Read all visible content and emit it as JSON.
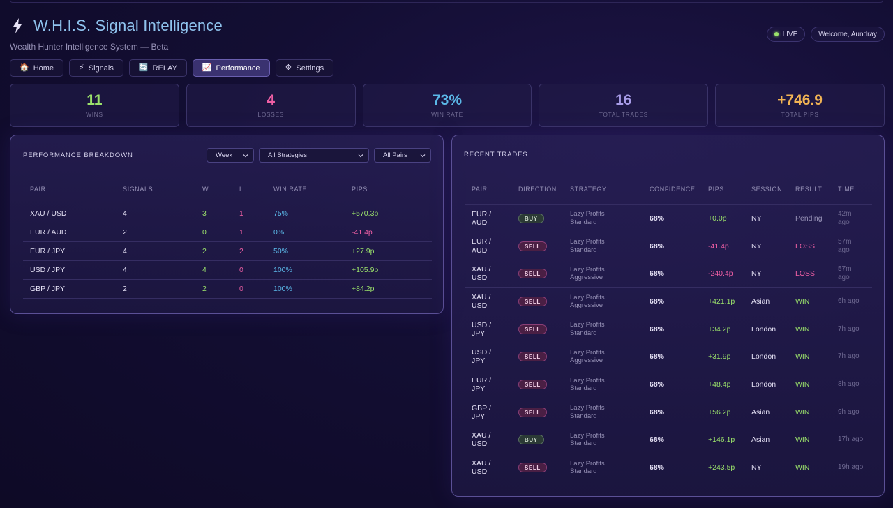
{
  "app": {
    "title": "W.H.I.S. Signal Intelligence",
    "subtitle": "Wealth Hunter Intelligence System — Beta",
    "live_label": "LIVE",
    "welcome": "Welcome, Aundray"
  },
  "nav": [
    {
      "icon": "🏠",
      "label": "Home",
      "active": false
    },
    {
      "icon": "⚡",
      "label": "Signals",
      "active": false
    },
    {
      "icon": "🔄",
      "label": "RELAY",
      "active": false
    },
    {
      "icon": "📈",
      "label": "Performance",
      "active": true
    },
    {
      "icon": "⚙",
      "label": "Settings",
      "active": false
    }
  ],
  "stats": [
    {
      "value": "11",
      "label": "WINS",
      "color": "#9be26b"
    },
    {
      "value": "4",
      "label": "LOSSES",
      "color": "#ef5fa4"
    },
    {
      "value": "73%",
      "label": "WIN RATE",
      "color": "#5bb8e8"
    },
    {
      "value": "16",
      "label": "TOTAL TRADES",
      "color": "#a89ce8"
    },
    {
      "value": "+746.9",
      "label": "TOTAL PIPS",
      "color": "#f2b454"
    }
  ],
  "breakdown": {
    "title": "PERFORMANCE BREAKDOWN",
    "filters": {
      "period": "Week",
      "strategy": "All Strategies",
      "pairs": "All Pairs"
    },
    "columns": [
      "PAIR",
      "SIGNALS",
      "W",
      "L",
      "WIN RATE",
      "PIPS"
    ],
    "rows": [
      {
        "pair": "XAU / USD",
        "signals": "4",
        "w": "3",
        "l": "1",
        "win_rate": "75%",
        "pips": "+570.3p"
      },
      {
        "pair": "EUR / AUD",
        "signals": "2",
        "w": "0",
        "l": "1",
        "win_rate": "0%",
        "pips": "-41.4p"
      },
      {
        "pair": "EUR / JPY",
        "signals": "4",
        "w": "2",
        "l": "2",
        "win_rate": "50%",
        "pips": "+27.9p"
      },
      {
        "pair": "USD / JPY",
        "signals": "4",
        "w": "4",
        "l": "0",
        "win_rate": "100%",
        "pips": "+105.9p"
      },
      {
        "pair": "GBP / JPY",
        "signals": "2",
        "w": "2",
        "l": "0",
        "win_rate": "100%",
        "pips": "+84.2p"
      }
    ]
  },
  "recent": {
    "title": "RECENT TRADES",
    "columns": [
      "PAIR",
      "DIRECTION",
      "STRATEGY",
      "CONFIDENCE",
      "PIPS",
      "SESSION",
      "RESULT",
      "TIME"
    ],
    "rows": [
      {
        "pair": [
          "EUR /",
          "AUD"
        ],
        "direction": "BUY",
        "strategy": [
          "Lazy Profits",
          "Standard"
        ],
        "confidence": "68%",
        "pips": "+0.0p",
        "session": "NY",
        "result": "Pending",
        "time": [
          "42m",
          "ago"
        ]
      },
      {
        "pair": [
          "EUR /",
          "AUD"
        ],
        "direction": "SELL",
        "strategy": [
          "Lazy Profits",
          "Standard"
        ],
        "confidence": "68%",
        "pips": "-41.4p",
        "session": "NY",
        "result": "LOSS",
        "time": [
          "57m",
          "ago"
        ]
      },
      {
        "pair": [
          "XAU /",
          "USD"
        ],
        "direction": "SELL",
        "strategy": [
          "Lazy Profits",
          "Aggressive"
        ],
        "confidence": "68%",
        "pips": "-240.4p",
        "session": "NY",
        "result": "LOSS",
        "time": [
          "57m",
          "ago"
        ]
      },
      {
        "pair": [
          "XAU /",
          "USD"
        ],
        "direction": "SELL",
        "strategy": [
          "Lazy Profits",
          "Aggressive"
        ],
        "confidence": "68%",
        "pips": "+421.1p",
        "session": "Asian",
        "result": "WIN",
        "time": [
          "6h ago",
          ""
        ]
      },
      {
        "pair": [
          "USD /",
          "JPY"
        ],
        "direction": "SELL",
        "strategy": [
          "Lazy Profits",
          "Standard"
        ],
        "confidence": "68%",
        "pips": "+34.2p",
        "session": "London",
        "result": "WIN",
        "time": [
          "7h ago",
          ""
        ]
      },
      {
        "pair": [
          "USD /",
          "JPY"
        ],
        "direction": "SELL",
        "strategy": [
          "Lazy Profits",
          "Aggressive"
        ],
        "confidence": "68%",
        "pips": "+31.9p",
        "session": "London",
        "result": "WIN",
        "time": [
          "7h ago",
          ""
        ]
      },
      {
        "pair": [
          "EUR /",
          "JPY"
        ],
        "direction": "SELL",
        "strategy": [
          "Lazy Profits",
          "Standard"
        ],
        "confidence": "68%",
        "pips": "+48.4p",
        "session": "London",
        "result": "WIN",
        "time": [
          "8h ago",
          ""
        ]
      },
      {
        "pair": [
          "GBP /",
          "JPY"
        ],
        "direction": "SELL",
        "strategy": [
          "Lazy Profits",
          "Standard"
        ],
        "confidence": "68%",
        "pips": "+56.2p",
        "session": "Asian",
        "result": "WIN",
        "time": [
          "9h ago",
          ""
        ]
      },
      {
        "pair": [
          "XAU /",
          "USD"
        ],
        "direction": "BUY",
        "strategy": [
          "Lazy Profits",
          "Standard"
        ],
        "confidence": "68%",
        "pips": "+146.1p",
        "session": "Asian",
        "result": "WIN",
        "time": [
          "17h ago",
          ""
        ]
      },
      {
        "pair": [
          "XAU /",
          "USD"
        ],
        "direction": "SELL",
        "strategy": [
          "Lazy Profits",
          "Standard"
        ],
        "confidence": "68%",
        "pips": "+243.5p",
        "session": "NY",
        "result": "WIN",
        "time": [
          "19h ago",
          ""
        ]
      }
    ]
  }
}
